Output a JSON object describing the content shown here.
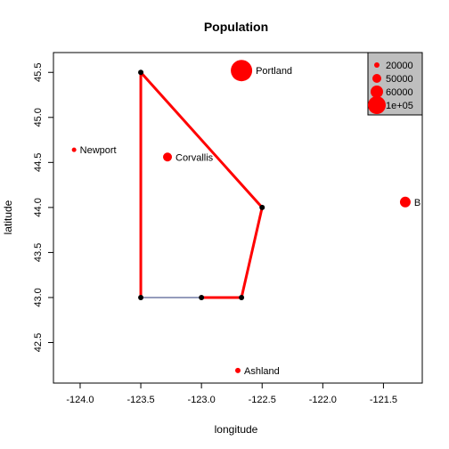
{
  "chart_data": {
    "type": "scatter",
    "title": "Population",
    "xlabel": "longitude",
    "ylabel": "latitude",
    "xlim": [
      -124.22,
      -121.18
    ],
    "ylim": [
      42.05,
      45.72
    ],
    "x_ticks": [
      {
        "value": -124.0,
        "label": "-124.0"
      },
      {
        "value": -123.5,
        "label": "-123.5"
      },
      {
        "value": -123.0,
        "label": "-123.0"
      },
      {
        "value": -122.5,
        "label": "-122.5"
      },
      {
        "value": -122.0,
        "label": "-122.0"
      },
      {
        "value": -121.5,
        "label": "-121.5"
      }
    ],
    "y_ticks": [
      {
        "value": 42.5,
        "label": "42.5"
      },
      {
        "value": 43.0,
        "label": "43.0"
      },
      {
        "value": 43.5,
        "label": "43.5"
      },
      {
        "value": 44.0,
        "label": "44.0"
      },
      {
        "value": 44.5,
        "label": "44.5"
      },
      {
        "value": 45.0,
        "label": "45.0"
      },
      {
        "value": 45.5,
        "label": "45.5"
      }
    ],
    "cities": [
      {
        "label": "Portland",
        "lon": -122.67,
        "lat": 45.52,
        "pop": 583000,
        "r": 12
      },
      {
        "label": "Newport",
        "lon": -124.05,
        "lat": 44.64,
        "pop": 10000,
        "r": 2.5
      },
      {
        "label": "Corvallis",
        "lon": -123.28,
        "lat": 44.56,
        "pop": 54000,
        "r": 5
      },
      {
        "label": "B",
        "lon": -121.32,
        "lat": 44.06,
        "pop": 77000,
        "r": 6
      },
      {
        "label": "Ashland",
        "lon": -122.7,
        "lat": 42.19,
        "pop": 20000,
        "r": 3
      }
    ],
    "polygon": [
      {
        "lon": -123.5,
        "lat": 45.5
      },
      {
        "lon": -122.5,
        "lat": 44.0
      },
      {
        "lon": -122.67,
        "lat": 43.0
      },
      {
        "lon": -123.0,
        "lat": 43.0
      },
      {
        "lon": -123.5,
        "lat": 43.0
      }
    ],
    "red_path": [
      {
        "lon": -123.0,
        "lat": 43.0
      },
      {
        "lon": -122.67,
        "lat": 43.0
      },
      {
        "lon": -122.5,
        "lat": 44.0
      },
      {
        "lon": -123.5,
        "lat": 45.5
      },
      {
        "lon": -123.5,
        "lat": 43.0
      }
    ],
    "thin_edge": [
      {
        "lon": -123.5,
        "lat": 43.0
      },
      {
        "lon": -123.0,
        "lat": 43.0
      }
    ],
    "legend": {
      "placement": "top-right",
      "entries": [
        {
          "label": "20000",
          "r": 3
        },
        {
          "label": "50000",
          "r": 5
        },
        {
          "label": "60000",
          "r": 7
        },
        {
          "label": "1e+05",
          "r": 10
        }
      ]
    },
    "colors": {
      "points": "#ff0000",
      "path": "#ff0000",
      "vertex": "#000000",
      "thin_edge": "#2b3a7a",
      "legend_bg": "#bebebe"
    }
  }
}
